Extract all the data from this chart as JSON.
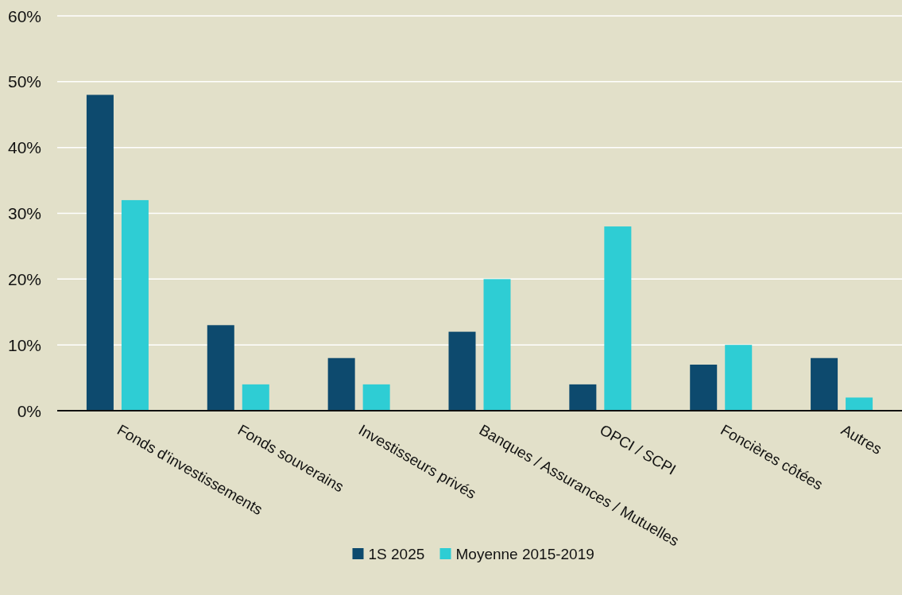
{
  "chart_data": {
    "type": "bar",
    "categories": [
      "Fonds d'investissements",
      "Fonds souverains",
      "Investisseurs privés",
      "Banques / Assurances / Mutuelles",
      "OPCI / SCPI",
      "Foncières côtées",
      "Autres"
    ],
    "series": [
      {
        "name": "1S 2025",
        "color": "#0d4a6e",
        "values": [
          48,
          13,
          8,
          12,
          4,
          7,
          8
        ]
      },
      {
        "name": "Moyenne 2015-2019",
        "color": "#2ecdd4",
        "values": [
          32,
          4,
          4,
          20,
          28,
          10,
          2
        ]
      }
    ],
    "ylim": [
      0,
      60
    ],
    "yticks": [
      {
        "value": 0,
        "label": "0%"
      },
      {
        "value": 10,
        "label": "10%"
      },
      {
        "value": 20,
        "label": "20%"
      },
      {
        "value": 30,
        "label": "30%"
      },
      {
        "value": 40,
        "label": "40%"
      },
      {
        "value": 50,
        "label": "50%"
      },
      {
        "value": 60,
        "label": "60%"
      }
    ],
    "grid": "y",
    "legend": "bottom"
  }
}
